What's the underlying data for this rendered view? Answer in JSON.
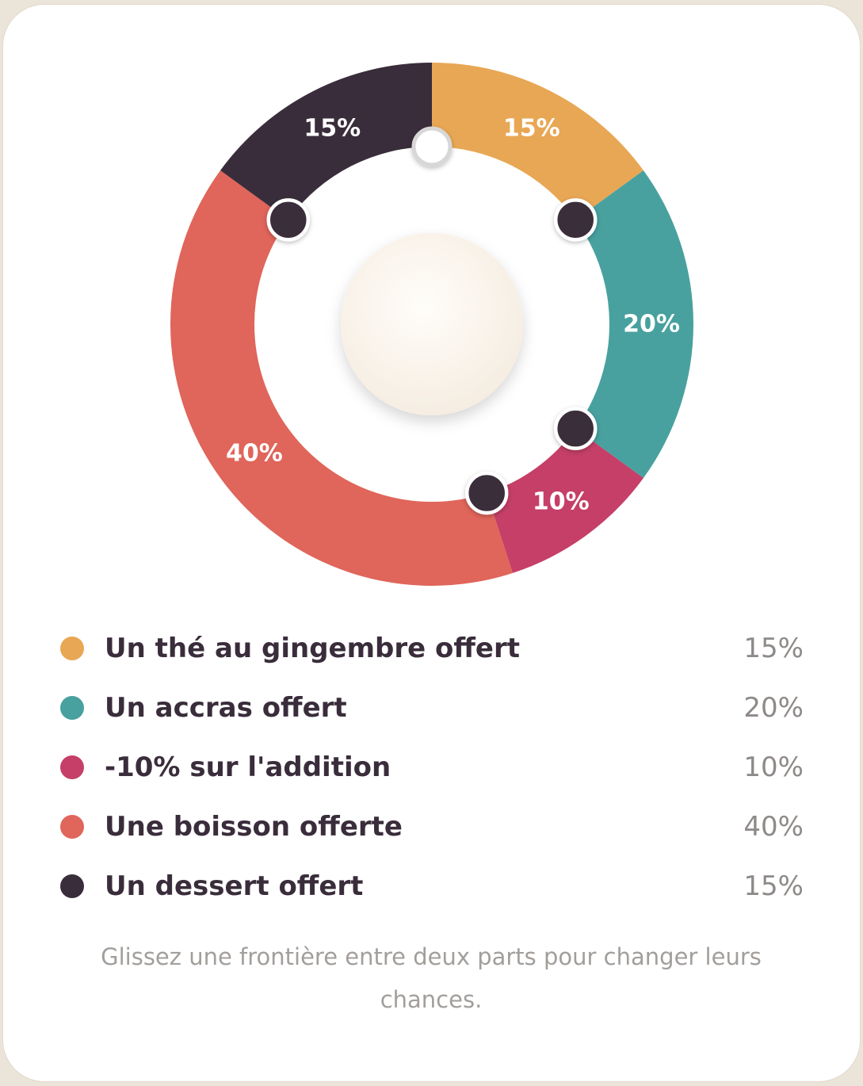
{
  "segments": [
    {
      "name": "Un thé au gingembre offert",
      "percent": 15,
      "label": "15%",
      "color": "#e8a754"
    },
    {
      "name": "Un accras offert",
      "percent": 20,
      "label": "20%",
      "color": "#48a19f"
    },
    {
      "name": "-10% sur l'addition",
      "percent": 10,
      "label": "10%",
      "color": "#c53f68"
    },
    {
      "name": "Une boisson offerte",
      "percent": 40,
      "label": "40%",
      "color": "#e0655a"
    },
    {
      "name": "Un dessert offert",
      "percent": 15,
      "label": "15%",
      "color": "#3a2d3b"
    }
  ],
  "colors": {
    "handle_fill": "#3a2d3b",
    "handle_start_fill": "#ffffff",
    "hub": "#f8f1e6"
  },
  "hint": "Glissez une frontière entre deux parts pour changer leurs chances."
}
